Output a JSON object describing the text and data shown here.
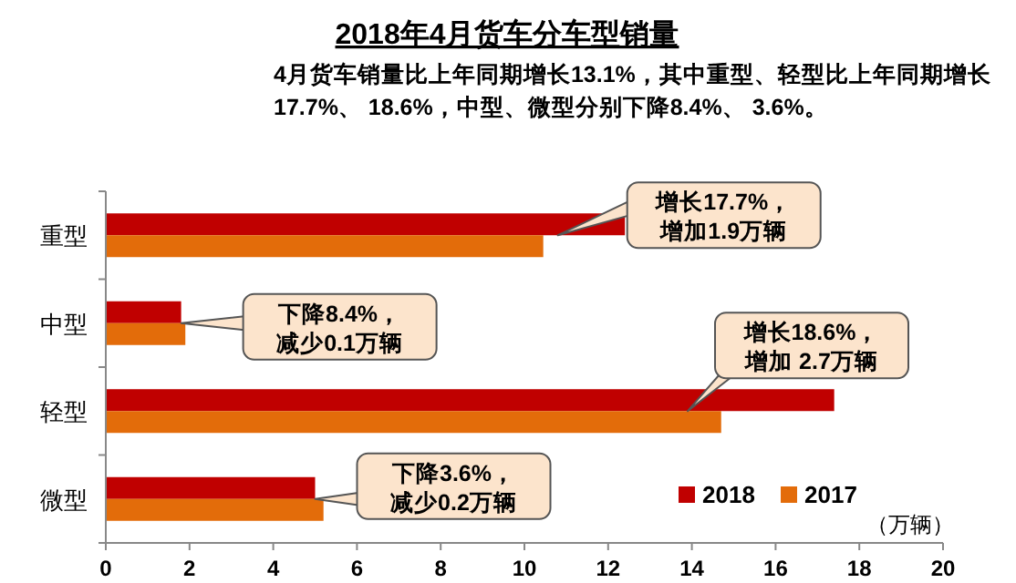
{
  "chart_data": {
    "type": "bar",
    "orientation": "horizontal",
    "title": "2018年4月货车分车型销量",
    "subtitle": "4月货车销量比上年同期增长13.1%，其中重型、轻型比上年同期增长17.7%、 18.6%，中型、微型分别下降8.4%、 3.6%。",
    "xlabel": "（万辆）",
    "categories": [
      "重型",
      "中型",
      "轻型",
      "微型"
    ],
    "series": [
      {
        "name": "2018",
        "color": "#c00000",
        "values": [
          12.4,
          1.8,
          17.4,
          5.0
        ]
      },
      {
        "name": "2017",
        "color": "#e36c0a",
        "values": [
          10.45,
          1.9,
          14.7,
          5.2
        ]
      }
    ],
    "xlim": [
      0,
      20
    ],
    "xticks": [
      0,
      2,
      4,
      6,
      8,
      10,
      12,
      14,
      16,
      18,
      20
    ],
    "grid": false,
    "legend": "bottom right",
    "annotations": [
      {
        "text": "增长17.7%，增加1.9万辆",
        "x": 10.8,
        "y": "重型"
      },
      {
        "text": "下降8.4%，减少0.1万辆",
        "x": 1.8,
        "y": "中型"
      },
      {
        "text": "增长18.6%，增加 2.7万辆",
        "x": 13.9,
        "y": "轻型"
      },
      {
        "text": "下降3.6%，减少0.2万辆",
        "x": 5.0,
        "y": "微型"
      }
    ]
  }
}
